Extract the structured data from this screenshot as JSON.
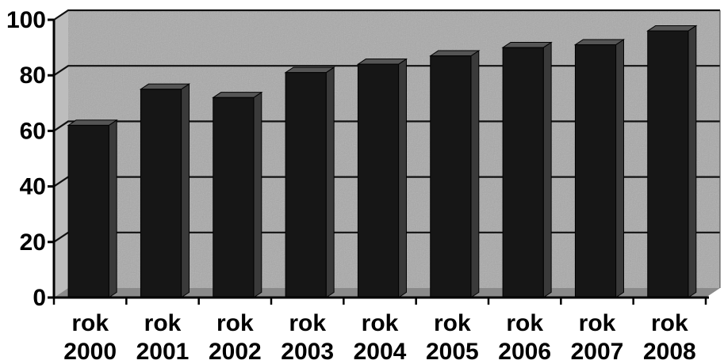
{
  "chart_data": {
    "type": "bar",
    "title": "",
    "xlabel": "",
    "ylabel": "",
    "categories": [
      [
        "rok",
        "2000"
      ],
      [
        "rok",
        "2001"
      ],
      [
        "rok",
        "2002"
      ],
      [
        "rok",
        "2003"
      ],
      [
        "rok",
        "2004"
      ],
      [
        "rok",
        "2005"
      ],
      [
        "rok",
        "2006"
      ],
      [
        "rok",
        "2007"
      ],
      [
        "rok",
        "2008"
      ]
    ],
    "values": [
      62,
      75,
      72,
      81,
      84,
      87,
      90,
      91,
      96
    ],
    "ylim": [
      0,
      100
    ],
    "yticks": [
      "0",
      "20",
      "40",
      "60",
      "80",
      "100"
    ],
    "grid": true,
    "legend": "none",
    "style": "3d",
    "colors": {
      "bar_front": "#161616",
      "bar_side": "#3a3a3a",
      "bar_top": "#555555",
      "plot_back": "#a9a9a9",
      "floor": "#8a8a8a",
      "gridline": "#111111",
      "axis": "#000000"
    }
  }
}
